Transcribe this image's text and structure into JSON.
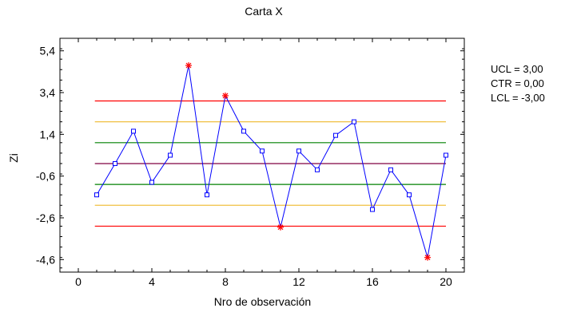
{
  "chart_data": {
    "type": "line",
    "title": "Carta X",
    "xlabel": "Nro de observación",
    "ylabel": "Zi",
    "xlim": [
      -1,
      21
    ],
    "ylim": [
      -5.2,
      6.0
    ],
    "xticks": [
      0,
      4,
      8,
      12,
      16,
      20
    ],
    "xtick_labels": [
      "0",
      "4",
      "8",
      "12",
      "16",
      "20"
    ],
    "yticks": [
      -4.6,
      -2.6,
      -0.6,
      1.4,
      3.4,
      5.4
    ],
    "ytick_labels": [
      "-4,6",
      "-2,6",
      "-0,6",
      "1,4",
      "3,4",
      "5,4"
    ],
    "x": [
      1,
      2,
      3,
      4,
      5,
      6,
      7,
      8,
      9,
      10,
      11,
      12,
      13,
      14,
      15,
      16,
      17,
      18,
      19,
      20
    ],
    "series": [
      {
        "values": [
          -1.5,
          0.0,
          1.55,
          -0.9,
          0.4,
          4.7,
          -1.5,
          3.25,
          1.55,
          0.6,
          -3.05,
          0.6,
          -0.3,
          1.35,
          2.0,
          -2.2,
          -0.3,
          -1.5,
          -4.5,
          0.4
        ],
        "out_of_control": [
          6,
          8,
          11,
          19
        ]
      }
    ],
    "limits": {
      "ucl": 3.0,
      "ctr": 0.0,
      "lcl": -3.0,
      "upper_warning": 2.0,
      "lower_warning": -2.0,
      "upper_inner": 1.0,
      "lower_inner": -1.0
    },
    "legend": [
      "UCL = 3,00",
      "CTR = 0,00",
      "LCL = -3,00"
    ],
    "colors": {
      "series": "#0000ff",
      "outlier": "#ff0000",
      "ucl_lcl": "#ff0000",
      "warning": "#f0c040",
      "inner": "#008000",
      "center": "#800040"
    }
  }
}
